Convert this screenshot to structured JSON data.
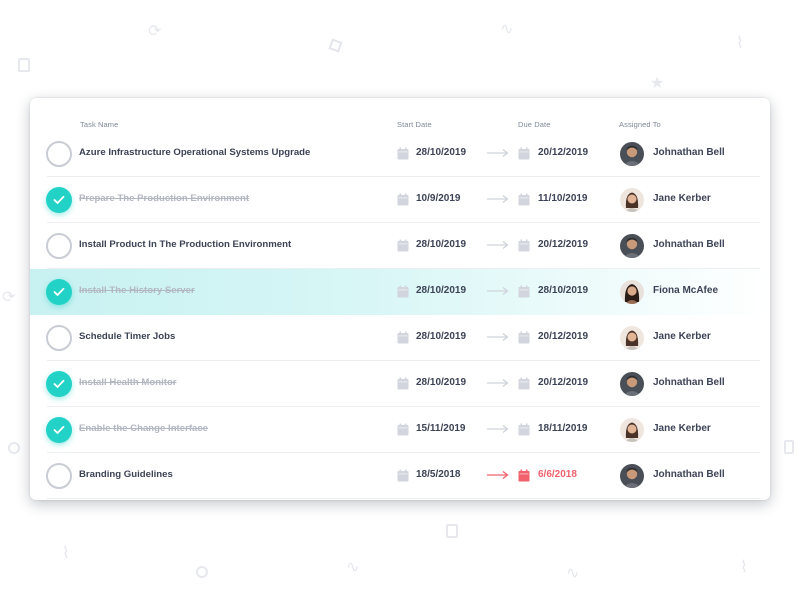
{
  "colors": {
    "accent": "#23d2c7",
    "overdue": "#f0616b",
    "highlight": "#c8f1f1",
    "text": "#3c4356",
    "muted": "#b3b7c2"
  },
  "header": {
    "task_name": "Task Name",
    "start_date": "Start Date",
    "due_date": "Due Date",
    "assigned_to": "Assigned To"
  },
  "tasks": [
    {
      "name": "Azure Infrastructure Operational Systems Upgrade",
      "done": false,
      "highlight": false,
      "start": "28/10/2019",
      "due": "20/12/2019",
      "overdue": false,
      "assignee": "Johnathan Bell",
      "avatar": "male"
    },
    {
      "name": "Prepare The Production Environment",
      "done": true,
      "highlight": false,
      "start": "10/9/2019",
      "due": "11/10/2019",
      "overdue": false,
      "assignee": "Jane Kerber",
      "avatar": "female"
    },
    {
      "name": "Install Product In The Production Environment",
      "done": false,
      "highlight": false,
      "start": "28/10/2019",
      "due": "20/12/2019",
      "overdue": false,
      "assignee": "Johnathan Bell",
      "avatar": "male"
    },
    {
      "name": "Install The History Server",
      "done": true,
      "highlight": true,
      "start": "28/10/2019",
      "due": "28/10/2019",
      "overdue": false,
      "assignee": "Fiona McAfee",
      "avatar": "female2"
    },
    {
      "name": "Schedule Timer Jobs",
      "done": false,
      "highlight": false,
      "start": "28/10/2019",
      "due": "20/12/2019",
      "overdue": false,
      "assignee": "Jane Kerber",
      "avatar": "female"
    },
    {
      "name": "Install Health Monitor",
      "done": true,
      "highlight": false,
      "start": "28/10/2019",
      "due": "20/12/2019",
      "overdue": false,
      "assignee": "Johnathan Bell",
      "avatar": "male"
    },
    {
      "name": "Enable the Change Interface",
      "done": true,
      "highlight": false,
      "start": "15/11/2019",
      "due": "18/11/2019",
      "overdue": false,
      "assignee": "Jane Kerber",
      "avatar": "female"
    },
    {
      "name": "Branding Guidelines",
      "done": false,
      "highlight": false,
      "start": "18/5/2018",
      "due": "6/6/2018",
      "overdue": true,
      "assignee": "Johnathan Bell",
      "avatar": "male"
    }
  ]
}
